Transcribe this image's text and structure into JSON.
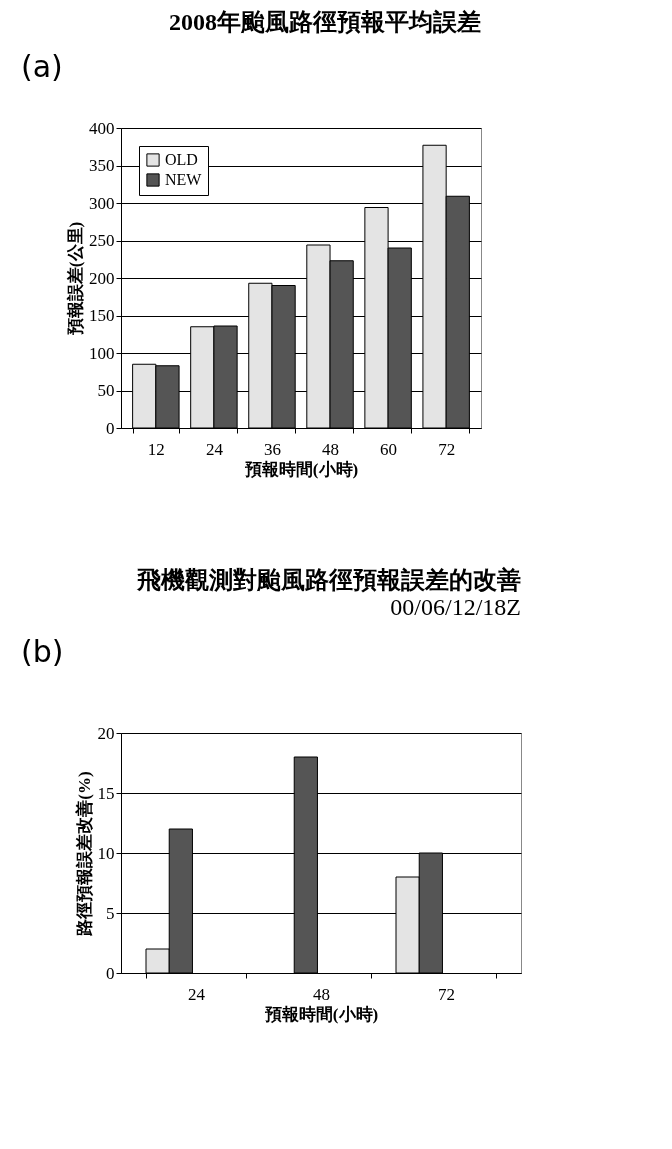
{
  "chart_data": [
    {
      "type": "bar",
      "title": "2008年颱風路徑預報平均誤差",
      "xlabel": "預報時間(小時)",
      "ylabel": "預報誤差(公里)",
      "annotations": [
        "(a)"
      ],
      "categories": [
        "12",
        "24",
        "36",
        "48",
        "60",
        "72"
      ],
      "series": [
        {
          "name": "OLD",
          "color": "#e4e4e4",
          "values": [
            85,
            135,
            193,
            244,
            294,
            377
          ]
        },
        {
          "name": "NEW",
          "color": "#555555",
          "values": [
            83,
            136,
            190,
            223,
            240,
            309
          ]
        }
      ],
      "ylim": [
        0,
        400
      ],
      "yticks": [
        0,
        50,
        100,
        150,
        200,
        250,
        300,
        350,
        400
      ],
      "grid": "y",
      "legend": "top left"
    },
    {
      "type": "bar",
      "title": "飛機觀測對颱風路徑預報誤差的改善",
      "subtitle": "00/06/12/18Z",
      "xlabel": "預報時間(小時)",
      "ylabel": "路徑預報誤差改善(%)",
      "annotations": [
        "(b)"
      ],
      "categories": [
        "24",
        "48",
        "72"
      ],
      "series": [
        {
          "name": "OLD",
          "color": "#e4e4e4",
          "values": [
            2,
            null,
            8
          ]
        },
        {
          "name": "NEW",
          "color": "#555555",
          "values": [
            12,
            18,
            10
          ]
        }
      ],
      "ylim": [
        0,
        20
      ],
      "yticks": [
        0,
        5,
        10,
        15,
        20
      ],
      "grid": "y",
      "legend": "top left"
    }
  ]
}
